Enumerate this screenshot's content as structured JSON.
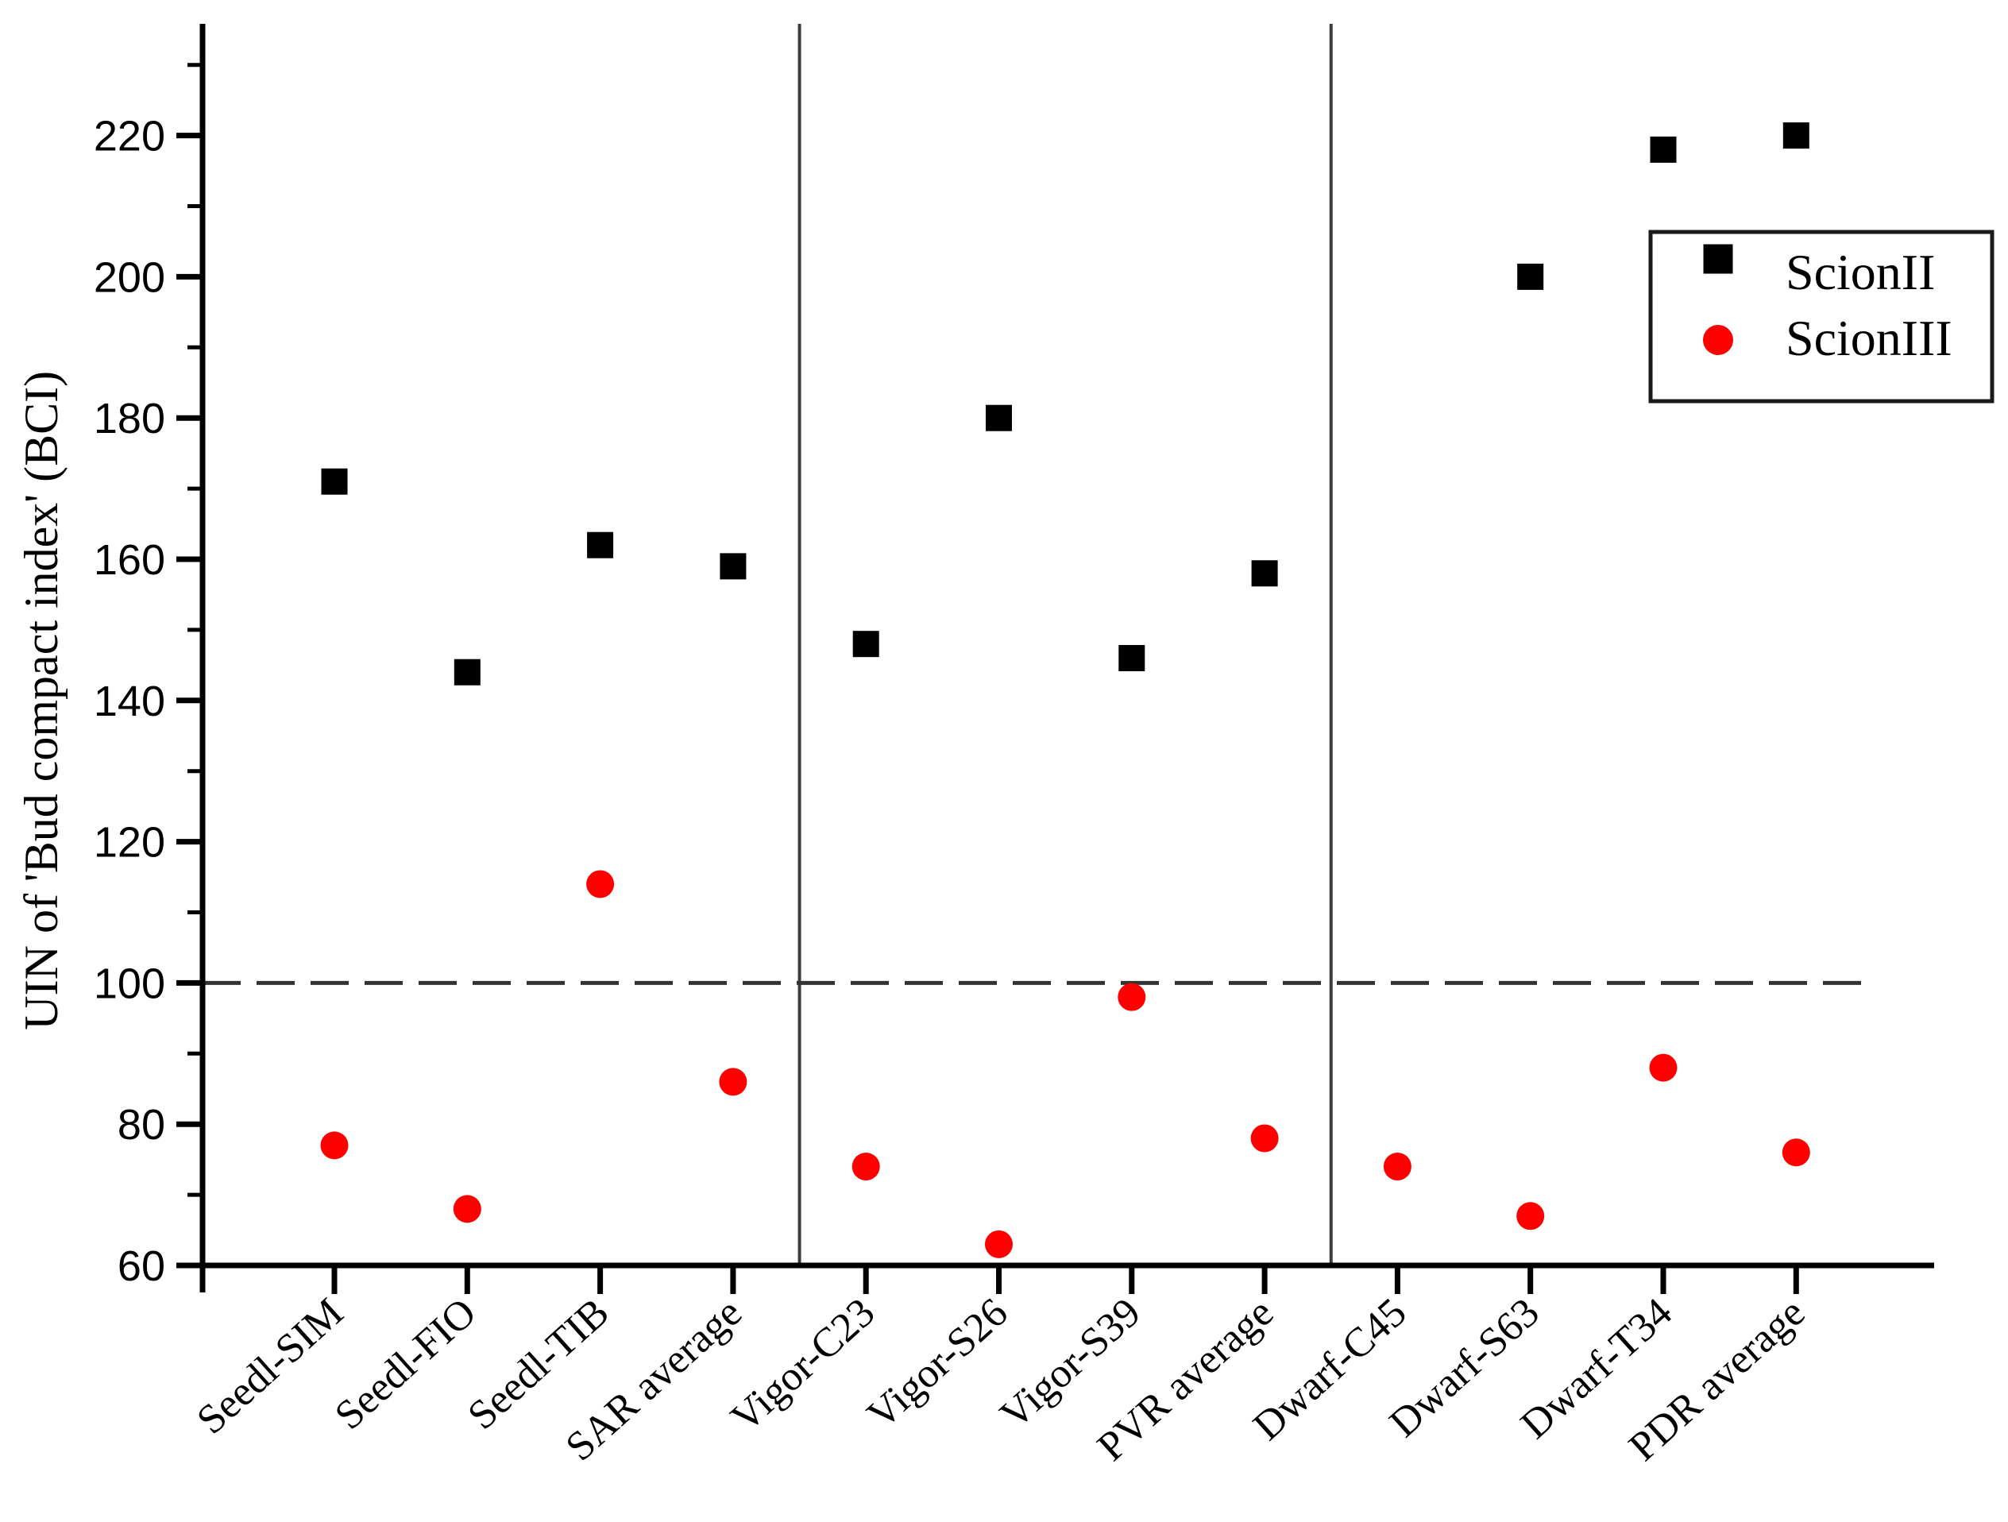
{
  "figure": {
    "background": "#ffffff",
    "kind": "scatter plot figure"
  },
  "chart_data": {
    "type": "scatter",
    "title": "",
    "xlabel": "",
    "ylabel": "UIN of 'Bud compact index' (BCI)",
    "ylim": [
      60,
      236
    ],
    "yticks_major": [
      60,
      80,
      100,
      120,
      140,
      160,
      180,
      200,
      220
    ],
    "yticks_minor": [
      70,
      90,
      110,
      130,
      150,
      170,
      190,
      210,
      230
    ],
    "grid": false,
    "categories": [
      "Seedl-SIM",
      "Seedl-FIO",
      "Seedl-TIB",
      "SAR average",
      "Vigor-C23",
      "Vigor-S26",
      "Vigor-S39",
      "PVR average",
      "Dwarf-C45",
      "Dwarf-S63",
      "Dwarf-T34",
      "PDR average"
    ],
    "series": [
      {
        "name": "ScionII",
        "marker": "square",
        "color": "#000000",
        "values": [
          171,
          144,
          162,
          159,
          148,
          180,
          146,
          158,
          null,
          200,
          218,
          220
        ]
      },
      {
        "name": "ScionIII",
        "marker": "circle",
        "color": "#ff0000",
        "values": [
          77,
          68,
          114,
          86,
          74,
          63,
          98,
          78,
          74,
          67,
          88,
          76
        ]
      }
    ],
    "reference_line": {
      "y": 100,
      "style": "dashed",
      "color": "#333333"
    },
    "group_separators_after_index": [
      3,
      7
    ],
    "legend": {
      "position": "top-right",
      "entries": [
        {
          "label": "ScionII",
          "marker": "square",
          "color": "#000000"
        },
        {
          "label": "ScionIII",
          "marker": "circle",
          "color": "#ff0000"
        }
      ]
    }
  },
  "colors": {
    "axis": "#000000",
    "separator": "#3d3d3d",
    "reference_line": "#333333",
    "legend_border": "#1a1a1a"
  }
}
